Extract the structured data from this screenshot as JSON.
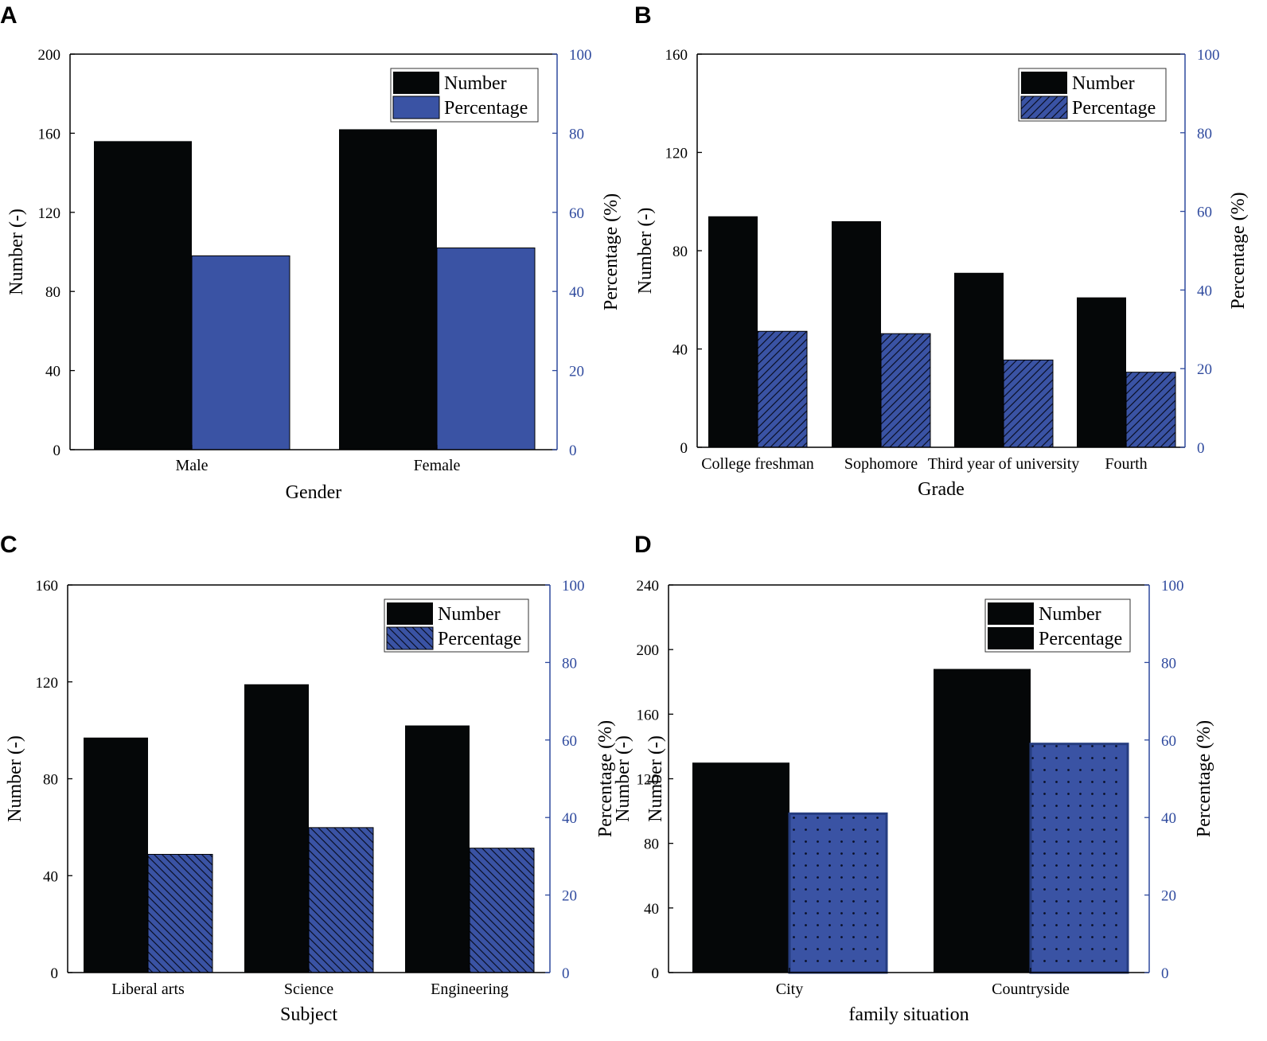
{
  "colors": {
    "number": "#050708",
    "percentage": "#3a53a4",
    "right_axis": "#2f4a9e",
    "axis": "#000000"
  },
  "chart_data": [
    {
      "panel": "A",
      "type": "bar",
      "xlabel": "Gender",
      "ylabel": "Number (-)",
      "y2label": "Percentage (%)",
      "ylim": [
        0,
        200
      ],
      "yticks": [
        "0",
        "40",
        "80",
        "120",
        "160",
        "200"
      ],
      "y2lim": [
        0,
        100
      ],
      "y2ticks": [
        "0",
        "20",
        "40",
        "60",
        "80",
        "100"
      ],
      "categories": [
        "Male",
        "Female"
      ],
      "series": [
        {
          "name": "Number",
          "axis": "left",
          "pattern": "solid",
          "values": [
            156,
            162
          ]
        },
        {
          "name": "Percentage",
          "axis": "right",
          "pattern": "solid",
          "values": [
            49,
            51
          ]
        }
      ],
      "legend": {
        "position": "top-right",
        "entries": [
          "Number",
          "Percentage"
        ],
        "patterns": [
          "black",
          "solid"
        ]
      }
    },
    {
      "panel": "B",
      "type": "bar",
      "xlabel": "Grade",
      "ylabel": "Number (-)",
      "y2label": "Percentage (%)",
      "ylim": [
        0,
        160
      ],
      "yticks": [
        "0",
        "40",
        "80",
        "120",
        "160"
      ],
      "y2lim": [
        0,
        100
      ],
      "y2ticks": [
        "0",
        "20",
        "40",
        "60",
        "80",
        "100"
      ],
      "categories": [
        "College freshman",
        "Sophomore",
        "Third year of university",
        "Fourth"
      ],
      "series": [
        {
          "name": "Number",
          "axis": "left",
          "pattern": "solid",
          "values": [
            94,
            92,
            71,
            61
          ]
        },
        {
          "name": "Percentage",
          "axis": "right",
          "pattern": "hatch-fwd",
          "values": [
            29.5,
            28.9,
            22.2,
            19.1
          ]
        }
      ],
      "legend": {
        "position": "top-right",
        "entries": [
          "Number",
          "Percentage"
        ],
        "patterns": [
          "black",
          "hatch-fwd"
        ]
      }
    },
    {
      "panel": "C",
      "type": "bar",
      "xlabel": "Subject",
      "ylabel": "Number (-)",
      "y2label": [
        "Percentage (%)",
        "Number (-)"
      ],
      "ylim": [
        0,
        160
      ],
      "yticks": [
        "0",
        "40",
        "80",
        "120",
        "160"
      ],
      "y2lim": [
        0,
        100
      ],
      "y2ticks": [
        "0",
        "20",
        "40",
        "60",
        "80",
        "100"
      ],
      "categories": [
        "Liberal arts",
        "Science",
        "Engineering"
      ],
      "series": [
        {
          "name": "Number",
          "axis": "left",
          "pattern": "solid",
          "values": [
            97,
            119,
            102
          ]
        },
        {
          "name": "Percentage",
          "axis": "right",
          "pattern": "hatch-back",
          "values": [
            30.5,
            37.4,
            32.1
          ]
        }
      ],
      "legend": {
        "position": "top-right",
        "entries": [
          "Number",
          "Percentage"
        ],
        "patterns": [
          "black",
          "hatch-back"
        ]
      }
    },
    {
      "panel": "D",
      "type": "bar",
      "xlabel": "family situation",
      "ylabel": "Number (-)",
      "y2label": "Percentage (%)",
      "ylim": [
        0,
        240
      ],
      "yticks": [
        "0",
        "40",
        "80",
        "120",
        "160",
        "200",
        "240"
      ],
      "y2lim": [
        0,
        100
      ],
      "y2ticks": [
        "0",
        "20",
        "40",
        "60",
        "80",
        "100"
      ],
      "categories": [
        "City",
        "Countryside"
      ],
      "series": [
        {
          "name": "Number",
          "axis": "left",
          "pattern": "solid",
          "values": [
            130,
            188
          ]
        },
        {
          "name": "Percentage",
          "axis": "right",
          "pattern": "dots",
          "values": [
            41,
            59
          ]
        }
      ],
      "legend": {
        "position": "top-right",
        "entries": [
          "Number",
          "Percentage"
        ],
        "patterns": [
          "black",
          "black"
        ]
      }
    }
  ]
}
